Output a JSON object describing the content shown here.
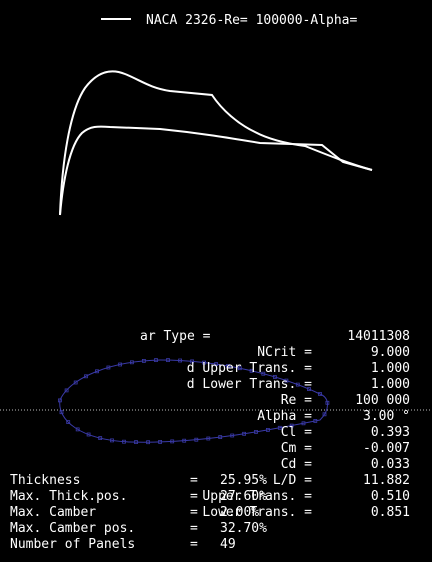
{
  "legend": {
    "label": "NACA 2326-Re=  100000-Alpha="
  },
  "params": [
    {
      "label": "ar Type =",
      "value": "14011308"
    },
    {
      "label": "NCrit =",
      "value": "9.000"
    },
    {
      "label": "d Upper Trans. =",
      "value": "1.000"
    },
    {
      "label": "d Lower Trans. =",
      "value": "1.000"
    },
    {
      "label": "Re =",
      "value": "100 000"
    },
    {
      "label": "Alpha =",
      "value": "3.00 °"
    },
    {
      "label": "Cl =",
      "value": "0.393"
    },
    {
      "label": "Cm =",
      "value": "-0.007"
    },
    {
      "label": "Cd =",
      "value": "0.033"
    },
    {
      "label": "L/D =",
      "value": "11.882"
    },
    {
      "label": "Upper Trans. =",
      "value": "0.510"
    },
    {
      "label": "Lower Trans. =",
      "value": "0.851"
    }
  ],
  "geometry": [
    {
      "label": "Thickness",
      "eq": "=",
      "value": "25.95%"
    },
    {
      "label": "Max. Thick.pos.",
      "eq": "=",
      "value": "27.60%"
    },
    {
      "label": "Max. Camber",
      "eq": "=",
      "value": "2.00%"
    },
    {
      "label": "Max. Camber pos.",
      "eq": "=",
      "value": "32.70%"
    },
    {
      "label": "Number of Panels",
      "eq": "=",
      "value": "49"
    }
  ],
  "colors": {
    "background": "#000000",
    "curve": "#ffffff",
    "airfoil": "#3a3aa8",
    "axis": "#bbbbbb"
  }
}
